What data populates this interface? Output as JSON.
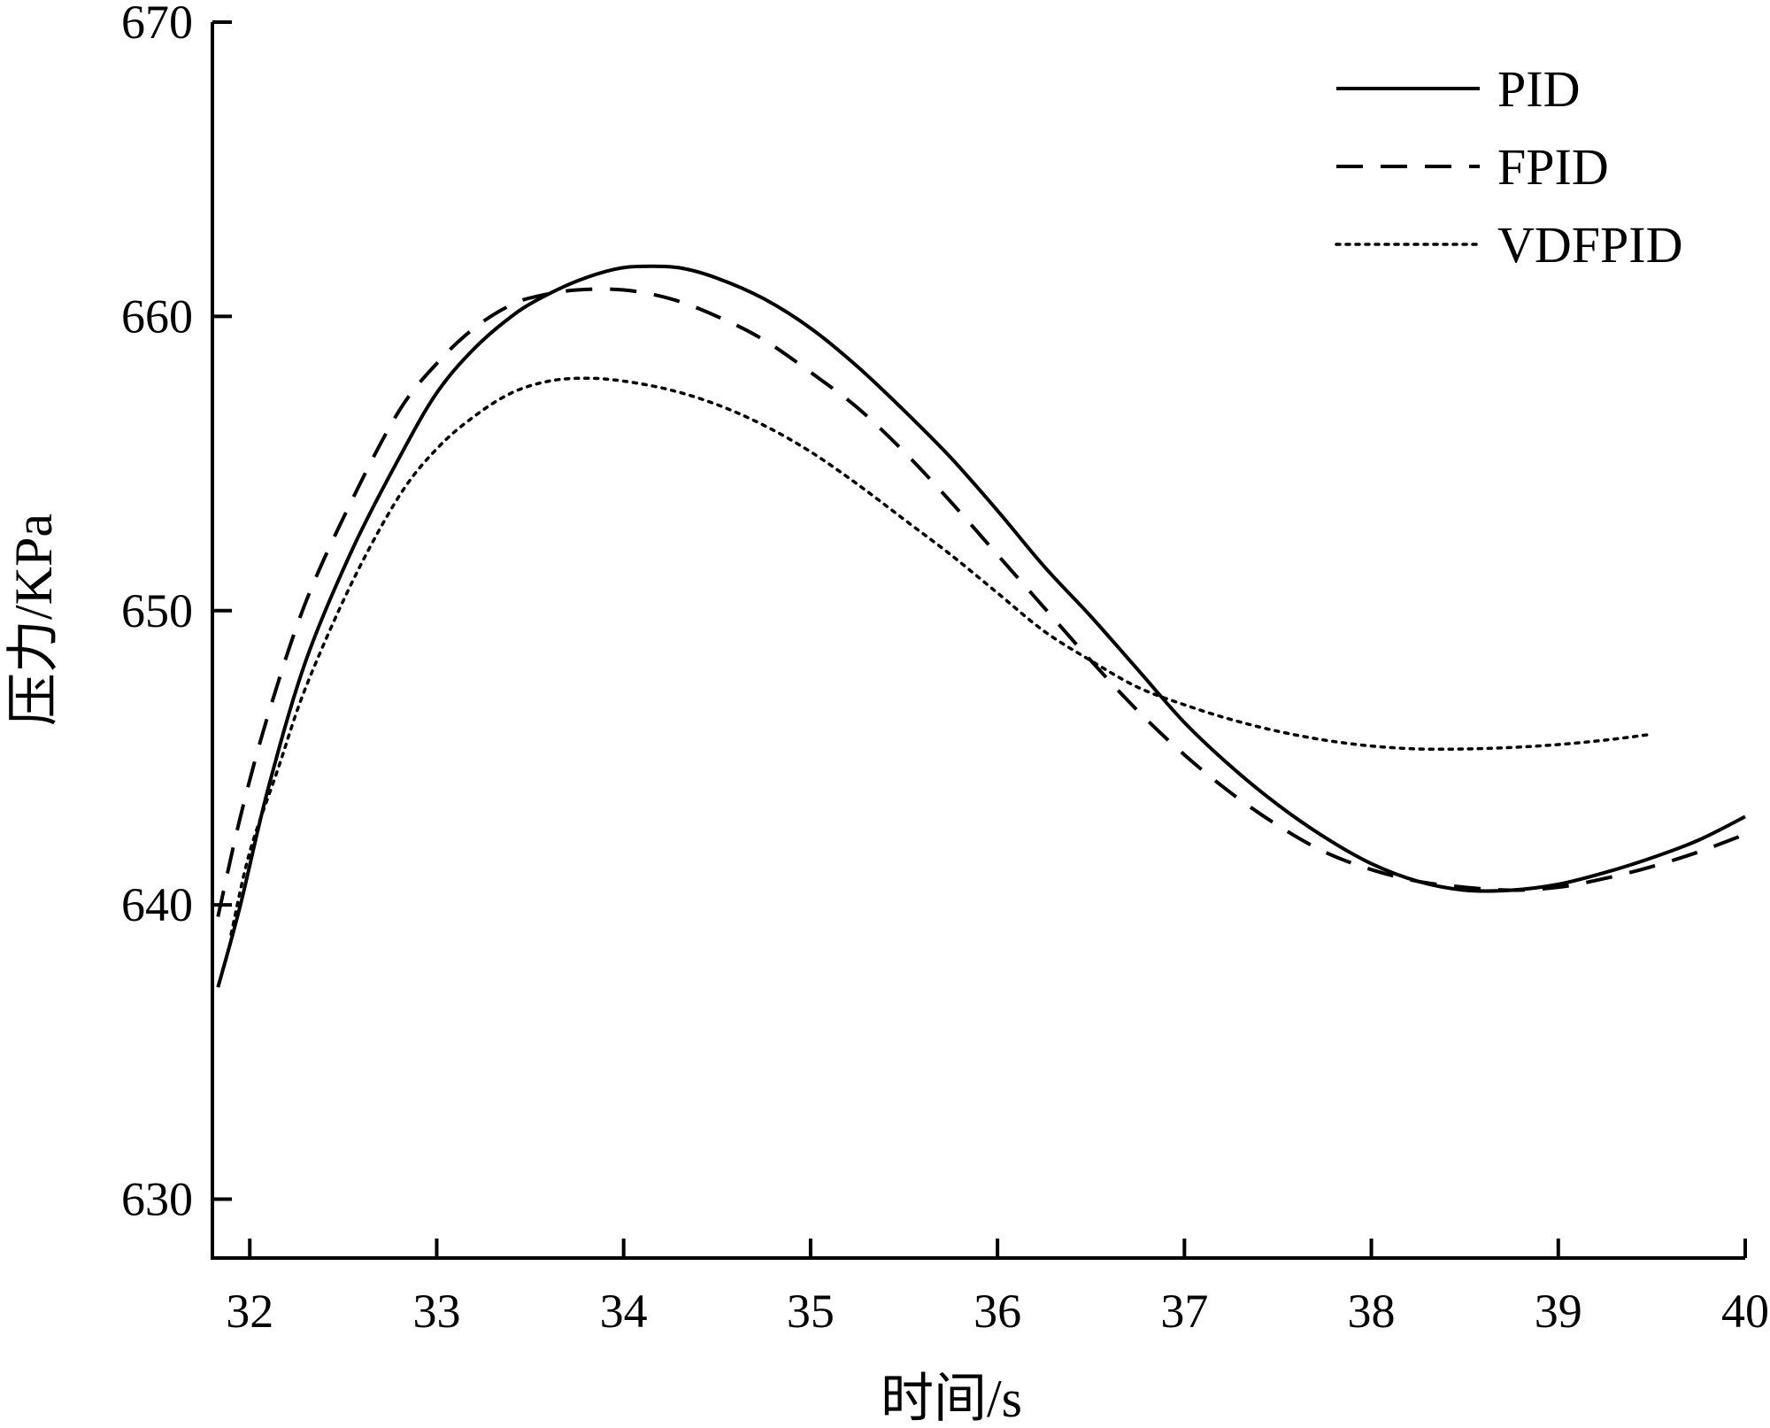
{
  "chart_data": {
    "type": "line",
    "title": "",
    "xlabel": "时间/s",
    "ylabel": "压力/KPa",
    "xlim": [
      31.8,
      40
    ],
    "ylim": [
      628,
      670
    ],
    "xticks": [
      32,
      33,
      34,
      35,
      36,
      37,
      38,
      39,
      40
    ],
    "yticks": [
      630,
      640,
      650,
      660,
      670
    ],
    "grid": false,
    "legend_position": "top-right",
    "series": [
      {
        "name": "PID",
        "style": "solid",
        "x": [
          31.83,
          31.95,
          32.1,
          32.3,
          32.55,
          32.8,
          33.0,
          33.2,
          33.4,
          33.55,
          33.75,
          33.95,
          34.1,
          34.3,
          34.5,
          34.75,
          35.0,
          35.25,
          35.5,
          35.75,
          36.0,
          36.25,
          36.5,
          36.75,
          37.0,
          37.25,
          37.5,
          37.75,
          38.0,
          38.25,
          38.5,
          38.75,
          39.0,
          39.25,
          39.5,
          39.75,
          40.0
        ],
        "y": [
          637.2,
          640.0,
          644.0,
          648.3,
          652.1,
          655.2,
          657.4,
          658.9,
          660.0,
          660.6,
          661.2,
          661.6,
          661.7,
          661.65,
          661.3,
          660.6,
          659.6,
          658.3,
          656.8,
          655.2,
          653.4,
          651.5,
          649.8,
          648.0,
          646.2,
          644.7,
          643.4,
          642.3,
          641.4,
          640.8,
          640.5,
          640.5,
          640.7,
          641.1,
          641.6,
          642.2,
          643.0
        ]
      },
      {
        "name": "FPID",
        "style": "dashed",
        "x": [
          31.83,
          31.95,
          32.1,
          32.3,
          32.55,
          32.8,
          33.0,
          33.2,
          33.4,
          33.55,
          33.75,
          34.0,
          34.25,
          34.5,
          34.75,
          35.0,
          35.25,
          35.5,
          35.75,
          36.0,
          36.25,
          36.5,
          36.75,
          37.0,
          37.25,
          37.5,
          37.75,
          38.0,
          38.25,
          38.5,
          38.75,
          39.0,
          39.25,
          39.5,
          39.75,
          40.0
        ],
        "y": [
          639.6,
          643.0,
          646.5,
          650.3,
          653.8,
          656.8,
          658.4,
          659.6,
          660.4,
          660.7,
          660.9,
          660.9,
          660.6,
          660.0,
          659.2,
          658.1,
          656.9,
          655.4,
          653.7,
          651.9,
          650.1,
          648.3,
          646.6,
          645.1,
          643.8,
          642.7,
          641.8,
          641.2,
          640.8,
          640.6,
          640.5,
          640.6,
          640.9,
          641.3,
          641.8,
          642.4
        ]
      },
      {
        "name": "VDFPID",
        "style": "dotted",
        "x": [
          31.9,
          32.0,
          32.15,
          32.3,
          32.55,
          32.8,
          33.0,
          33.2,
          33.4,
          33.6,
          33.8,
          34.0,
          34.25,
          34.5,
          34.75,
          35.0,
          35.25,
          35.5,
          35.75,
          36.0,
          36.25,
          36.5,
          36.75,
          37.0,
          37.25,
          37.5,
          37.75,
          38.0,
          38.25,
          38.5,
          38.75,
          39.0,
          39.25,
          39.5
        ],
        "y": [
          639.0,
          641.8,
          644.6,
          647.4,
          651.0,
          653.9,
          655.5,
          656.6,
          657.4,
          657.8,
          657.9,
          657.8,
          657.5,
          657.0,
          656.3,
          655.4,
          654.3,
          653.1,
          651.9,
          650.6,
          649.3,
          648.3,
          647.4,
          646.8,
          646.3,
          645.9,
          645.6,
          645.4,
          645.3,
          645.3,
          645.35,
          645.45,
          645.6,
          645.8
        ]
      }
    ]
  }
}
